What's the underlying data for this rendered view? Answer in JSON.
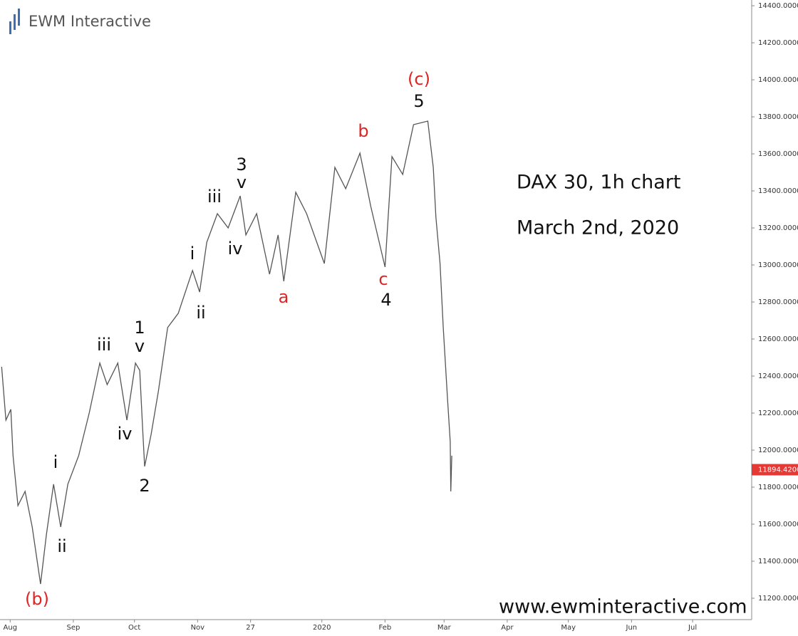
{
  "brand": "EWM Interactive",
  "chart_data": {
    "type": "line",
    "annotations": [
      {
        "text": "(b)",
        "color": "#e02424"
      },
      {
        "text": "i",
        "color": "#111111"
      },
      {
        "text": "ii",
        "color": "#111111"
      },
      {
        "text": "iii",
        "color": "#111111"
      },
      {
        "text": "iv",
        "color": "#111111"
      },
      {
        "text": "1",
        "color": "#111111"
      },
      {
        "text": "v",
        "color": "#111111"
      },
      {
        "text": "2",
        "color": "#111111"
      },
      {
        "text": "i",
        "color": "#111111"
      },
      {
        "text": "ii",
        "color": "#111111"
      },
      {
        "text": "iii",
        "color": "#111111"
      },
      {
        "text": "iv",
        "color": "#111111"
      },
      {
        "text": "3",
        "color": "#111111"
      },
      {
        "text": "v",
        "color": "#111111"
      },
      {
        "text": "a",
        "color": "#e02424"
      },
      {
        "text": "b",
        "color": "#e02424"
      },
      {
        "text": "c",
        "color": "#e02424"
      },
      {
        "text": "4",
        "color": "#111111"
      },
      {
        "text": "(c)",
        "color": "#e02424"
      },
      {
        "text": "5",
        "color": "#111111"
      }
    ],
    "notes": [
      "DAX 30, 1h chart",
      "March 2nd, 2020",
      "www.ewminteractive.com"
    ],
    "x": [
      -4.2,
      -2.1,
      0.3,
      1.4,
      3.8,
      7.3,
      10.8,
      14.9,
      17.8,
      21.3,
      24.8,
      28.3,
      33.6,
      38.8,
      44,
      47.6,
      52.8,
      57.3,
      61.5,
      63.6,
      65,
      66,
      69.2,
      72.7,
      77.3,
      82.5,
      89.5,
      93,
      96.5,
      101.7,
      107,
      112.9,
      115.7,
      121,
      127.3,
      131.5,
      134.3,
      140.2,
      145.5,
      154.2,
      159.4,
      164.7,
      171.7,
      177,
      184,
      187.4,
      192.7,
      198,
      205,
      207.7,
      209,
      211,
      212.6,
      214.7,
      216,
      216.3,
      216.8
    ],
    "series": [
      {
        "name": "DAX 30",
        "color": "#555555",
        "values": [
          12450,
          12162,
          12220,
          11970,
          11700,
          11777,
          11585,
          11277,
          11546,
          11816,
          11585,
          11816,
          11970,
          12200,
          12470,
          12354,
          12470,
          12162,
          12470,
          12431,
          12123,
          11912,
          12085,
          12316,
          12662,
          12739,
          12970,
          12854,
          13123,
          13277,
          13200,
          13373,
          13162,
          13277,
          12950,
          13162,
          12912,
          13393,
          13277,
          13008,
          13527,
          13412,
          13604,
          13316,
          12989,
          13585,
          13489,
          13758,
          13777,
          13527,
          13258,
          13008,
          12662,
          12277,
          12046,
          11777,
          11970
        ]
      }
    ],
    "last_price": {
      "value": 11894.42,
      "label": "11894.4200",
      "color": "#e53935"
    },
    "xlim": [
      -5,
      364
    ],
    "xticks": [
      {
        "value": 0,
        "label": "Aug"
      },
      {
        "value": 31,
        "label": "Sep"
      },
      {
        "value": 61,
        "label": "Oct"
      },
      {
        "value": 92,
        "label": "Nov"
      },
      {
        "value": 118,
        "label": "27"
      },
      {
        "value": 153,
        "label": "2020"
      },
      {
        "value": 184,
        "label": "Feb"
      },
      {
        "value": 213,
        "label": "Mar"
      },
      {
        "value": 244,
        "label": "Apr"
      },
      {
        "value": 274,
        "label": "May"
      },
      {
        "value": 305,
        "label": "Jun"
      },
      {
        "value": 335,
        "label": "Jul"
      }
    ],
    "ylim": [
      11100,
      14431
    ],
    "yticks": [
      {
        "value": 11200,
        "label": "11200.0000"
      },
      {
        "value": 11400,
        "label": "11400.0000"
      },
      {
        "value": 11600,
        "label": "11600.0000"
      },
      {
        "value": 11800,
        "label": "11800.0000"
      },
      {
        "value": 12000,
        "label": "12000.0000"
      },
      {
        "value": 12200,
        "label": "12200.0000"
      },
      {
        "value": 12400,
        "label": "12400.0000"
      },
      {
        "value": 12600,
        "label": "12600.0000"
      },
      {
        "value": 12800,
        "label": "12800.0000"
      },
      {
        "value": 13000,
        "label": "13000.0000"
      },
      {
        "value": 13200,
        "label": "13200.0000"
      },
      {
        "value": 13400,
        "label": "13400.0000"
      },
      {
        "value": 13600,
        "label": "13600.0000"
      },
      {
        "value": 13800,
        "label": "13800.0000"
      },
      {
        "value": 14000,
        "label": "14000.0000"
      },
      {
        "value": 14200,
        "label": "14200.0000"
      },
      {
        "value": 14400,
        "label": "14400.0000"
      }
    ],
    "grid": false
  }
}
